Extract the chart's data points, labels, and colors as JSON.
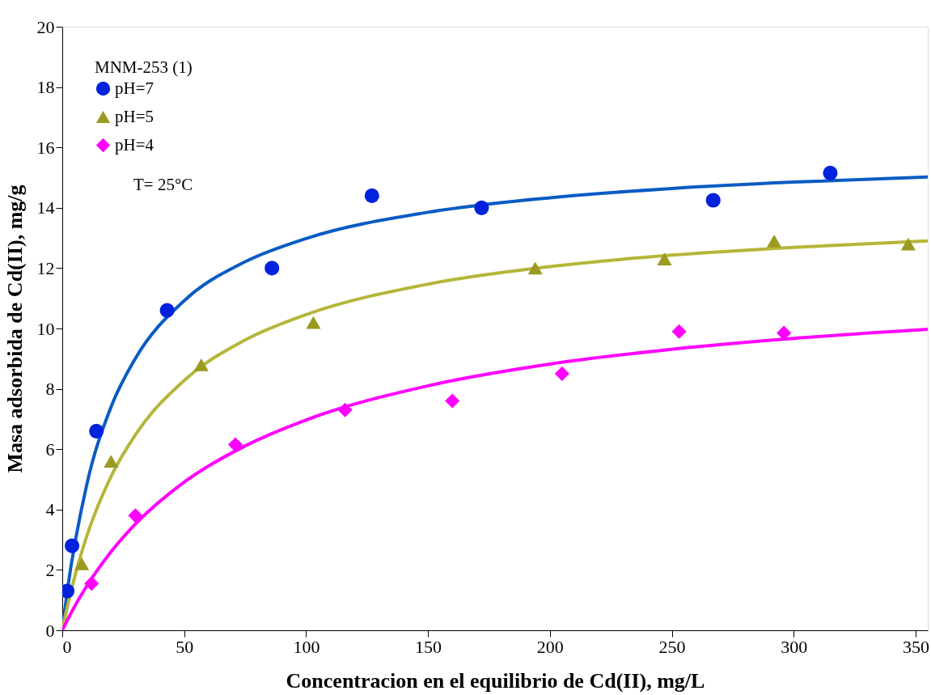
{
  "chart_data": {
    "type": "scatter",
    "xlabel": "Concentracion en el equilibrio de Cd(II), mg/L",
    "ylabel": "Masa adsorbida de Cd(II), mg/g",
    "legend_title": "MNM-253 (1)",
    "annotations": [
      "T= 25°C"
    ],
    "xlim": [
      0,
      355
    ],
    "ylim": [
      0,
      20
    ],
    "xticks": [
      0,
      50,
      100,
      150,
      200,
      250,
      300,
      350
    ],
    "yticks": [
      0,
      2,
      4,
      6,
      8,
      10,
      12,
      14,
      16,
      18,
      20
    ],
    "grid": false,
    "legend": "top left",
    "series": [
      {
        "name": "pH=7",
        "marker": "circle",
        "color": "#0022dd",
        "x": [
          2,
          4,
          14,
          43,
          86,
          127,
          172,
          267,
          315
        ],
        "values": [
          1.3,
          2.8,
          6.6,
          10.6,
          12.0,
          14.4,
          14.0,
          14.25,
          15.15
        ]
      },
      {
        "name": "pH=5",
        "marker": "triangle",
        "color": "#9a9a20",
        "x": [
          8,
          20,
          57,
          103,
          194,
          247,
          292,
          347
        ],
        "values": [
          2.2,
          5.6,
          8.8,
          10.2,
          12.0,
          12.3,
          12.9,
          12.8
        ]
      },
      {
        "name": "pH=4",
        "marker": "diamond",
        "color": "#ff00ff",
        "x": [
          12,
          30,
          71,
          116,
          160,
          205,
          253,
          296
        ],
        "values": [
          1.55,
          3.8,
          6.15,
          7.3,
          7.6,
          8.5,
          9.9,
          9.85
        ]
      },
      {
        "type": "line",
        "color": "#0a5bc4",
        "x": [
          0,
          2,
          10,
          20,
          30,
          50,
          75,
          100,
          150,
          200,
          250,
          300,
          355
        ],
        "values": [
          0,
          1.27,
          4.81,
          7.4,
          9.01,
          10.92,
          12.21,
          12.98,
          13.85,
          14.33,
          14.64,
          14.85,
          15.02
        ]
      },
      {
        "type": "line",
        "color": "#b5b53a",
        "x": [
          0,
          2,
          5,
          10,
          20,
          30,
          50,
          75,
          100,
          150,
          200,
          250,
          300,
          355
        ],
        "values": [
          0,
          0.75,
          1.74,
          3.11,
          5.1,
          6.48,
          8.28,
          9.62,
          10.46,
          11.47,
          12.05,
          12.43,
          12.69,
          12.9
        ]
      },
      {
        "type": "line",
        "color": "#ff00ff",
        "x": [
          0,
          2,
          5,
          10,
          20,
          30,
          50,
          75,
          100,
          150,
          200,
          250,
          300,
          355
        ],
        "values": [
          0,
          0.32,
          0.78,
          1.46,
          2.6,
          3.52,
          4.91,
          6.11,
          6.97,
          8.1,
          8.82,
          9.31,
          9.67,
          9.97
        ]
      }
    ]
  }
}
